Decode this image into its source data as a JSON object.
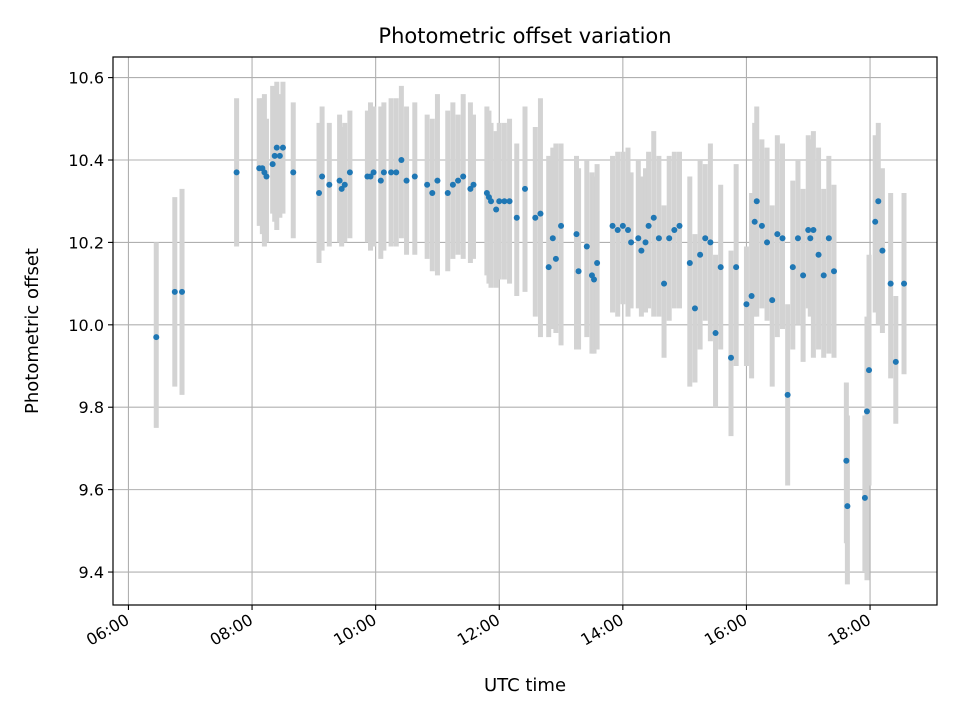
{
  "chart_data": {
    "type": "scatter",
    "title": "Photometric offset variation",
    "xlabel": "UTC time",
    "ylabel": "Photometric offset",
    "xlim": [
      "05:45",
      "19:05"
    ],
    "ylim": [
      9.32,
      10.65
    ],
    "x_ticks": [
      "06:00",
      "08:00",
      "10:00",
      "12:00",
      "14:00",
      "16:00",
      "18:00"
    ],
    "y_ticks": [
      "9.4",
      "9.6",
      "9.8",
      "10.0",
      "10.2",
      "10.4",
      "10.6"
    ],
    "grid": true,
    "point_color": "#1f77b4",
    "errorbar_color": "#d3d3d3",
    "series": [
      {
        "x": [
          "06:27",
          "06:45",
          "06:52",
          "07:45",
          "08:07",
          "08:10",
          "08:12",
          "08:14",
          "08:20",
          "08:22",
          "08:24",
          "08:27",
          "08:30",
          "08:40",
          "09:05",
          "09:08",
          "09:15",
          "09:25",
          "09:27",
          "09:30",
          "09:35",
          "09:52",
          "09:55",
          "09:58",
          "10:05",
          "10:08",
          "10:15",
          "10:20",
          "10:25",
          "10:30",
          "10:38",
          "10:50",
          "10:55",
          "11:00",
          "11:10",
          "11:15",
          "11:20",
          "11:25",
          "11:32",
          "11:35",
          "11:48",
          "11:50",
          "11:52",
          "11:57",
          "12:00",
          "12:05",
          "12:10",
          "12:17",
          "12:25",
          "12:35",
          "12:40",
          "12:48",
          "12:52",
          "12:55",
          "13:00",
          "13:15",
          "13:17",
          "13:25",
          "13:30",
          "13:32",
          "13:35",
          "13:50",
          "13:55",
          "14:00",
          "14:05",
          "14:08",
          "14:15",
          "14:18",
          "14:22",
          "14:25",
          "14:30",
          "14:35",
          "14:40",
          "14:45",
          "14:50",
          "14:55",
          "15:05",
          "15:10",
          "15:15",
          "15:20",
          "15:25",
          "15:30",
          "15:35",
          "15:45",
          "15:50",
          "16:00",
          "16:05",
          "16:08",
          "16:10",
          "16:15",
          "16:20",
          "16:25",
          "16:30",
          "16:35",
          "16:40",
          "16:45",
          "16:50",
          "16:55",
          "17:00",
          "17:02",
          "17:05",
          "17:10",
          "17:15",
          "17:20",
          "17:25",
          "17:37",
          "17:38",
          "17:55",
          "17:57",
          "17:59",
          "18:05",
          "18:08",
          "18:12",
          "18:20",
          "18:25",
          "18:33"
        ],
        "y": [
          9.97,
          10.08,
          10.08,
          10.37,
          10.38,
          10.38,
          10.37,
          10.36,
          10.39,
          10.41,
          10.43,
          10.41,
          10.43,
          10.37,
          10.32,
          10.36,
          10.34,
          10.35,
          10.33,
          10.34,
          10.37,
          10.36,
          10.36,
          10.37,
          10.35,
          10.37,
          10.37,
          10.37,
          10.4,
          10.35,
          10.36,
          10.34,
          10.32,
          10.35,
          10.32,
          10.34,
          10.35,
          10.36,
          10.33,
          10.34,
          10.32,
          10.31,
          10.3,
          10.28,
          10.3,
          10.3,
          10.3,
          10.26,
          10.33,
          10.26,
          10.27,
          10.14,
          10.21,
          10.16,
          10.24,
          10.22,
          10.13,
          10.19,
          10.12,
          10.11,
          10.15,
          10.24,
          10.23,
          10.24,
          10.23,
          10.2,
          10.21,
          10.18,
          10.2,
          10.24,
          10.26,
          10.21,
          10.1,
          10.21,
          10.23,
          10.24,
          10.15,
          10.04,
          10.17,
          10.21,
          10.2,
          9.98,
          10.14,
          9.92,
          10.14,
          10.05,
          10.07,
          10.25,
          10.3,
          10.24,
          10.2,
          10.06,
          10.22,
          10.21,
          9.83,
          10.14,
          10.21,
          10.12,
          10.23,
          10.21,
          10.23,
          10.17,
          10.12,
          10.21,
          10.13,
          9.67,
          9.56,
          9.58,
          9.79,
          9.89,
          10.25,
          10.3,
          10.18,
          10.1,
          9.91,
          10.1
        ],
        "yerr_low": [
          9.75,
          9.85,
          9.83,
          10.19,
          10.24,
          10.22,
          10.19,
          10.2,
          10.27,
          10.25,
          10.23,
          10.26,
          10.27,
          10.21,
          10.15,
          10.18,
          10.19,
          10.2,
          10.19,
          10.2,
          10.21,
          10.2,
          10.18,
          10.19,
          10.16,
          10.18,
          10.19,
          10.19,
          10.21,
          10.17,
          10.17,
          10.16,
          10.13,
          10.12,
          10.13,
          10.16,
          10.17,
          10.16,
          10.15,
          10.16,
          10.12,
          10.1,
          10.09,
          10.09,
          10.11,
          10.11,
          10.1,
          10.07,
          10.08,
          10.02,
          9.97,
          9.97,
          9.99,
          9.98,
          9.95,
          9.94,
          9.94,
          9.97,
          9.93,
          9.93,
          9.94,
          10.03,
          10.02,
          10.05,
          10.02,
          10.04,
          10.04,
          10.02,
          10.03,
          10.04,
          10.02,
          10.02,
          9.92,
          10.01,
          10.04,
          10.04,
          9.85,
          9.86,
          9.94,
          10.01,
          9.96,
          9.8,
          9.94,
          9.73,
          9.9,
          9.9,
          9.87,
          10.02,
          10.02,
          10.04,
          10.01,
          9.85,
          9.97,
          9.99,
          9.61,
          9.94,
          10.0,
          9.91,
          10.04,
          10.02,
          9.92,
          9.94,
          9.92,
          9.93,
          9.92,
          9.47,
          9.37,
          9.4,
          9.38,
          9.61,
          10.03,
          10.0,
          9.98,
          9.87,
          9.76,
          9.88
        ],
        "yerr_high": [
          10.2,
          10.31,
          10.33,
          10.55,
          10.55,
          10.55,
          10.56,
          10.5,
          10.58,
          10.57,
          10.59,
          10.56,
          10.59,
          10.54,
          10.49,
          10.53,
          10.49,
          10.51,
          10.48,
          10.49,
          10.52,
          10.52,
          10.54,
          10.53,
          10.53,
          10.54,
          10.55,
          10.55,
          10.58,
          10.53,
          10.54,
          10.51,
          10.5,
          10.56,
          10.52,
          10.54,
          10.51,
          10.56,
          10.54,
          10.51,
          10.53,
          10.52,
          10.49,
          10.47,
          10.49,
          10.49,
          10.5,
          10.44,
          10.53,
          10.48,
          10.55,
          10.41,
          10.43,
          10.44,
          10.44,
          10.41,
          10.38,
          10.4,
          10.37,
          10.36,
          10.39,
          10.41,
          10.42,
          10.42,
          10.43,
          10.37,
          10.4,
          10.36,
          10.38,
          10.42,
          10.47,
          10.41,
          10.29,
          10.41,
          10.42,
          10.42,
          10.36,
          10.22,
          10.4,
          10.39,
          10.44,
          10.17,
          10.34,
          10.18,
          10.39,
          10.19,
          10.32,
          10.49,
          10.53,
          10.45,
          10.43,
          10.29,
          10.46,
          10.44,
          10.05,
          10.35,
          10.4,
          10.33,
          10.46,
          10.45,
          10.47,
          10.43,
          10.33,
          10.41,
          10.34,
          9.86,
          9.78,
          9.78,
          10.02,
          10.17,
          10.46,
          10.49,
          10.38,
          10.32,
          10.07,
          10.32
        ]
      }
    ]
  }
}
